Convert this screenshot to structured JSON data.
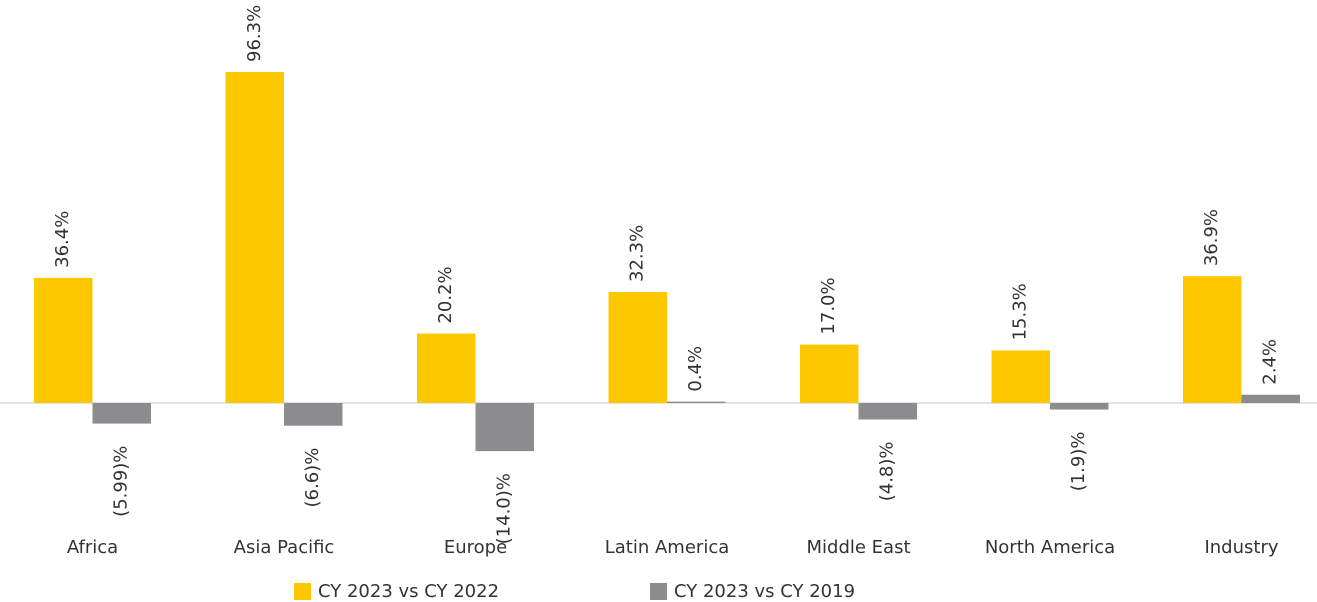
{
  "chart_data": {
    "type": "bar",
    "categories": [
      "Africa",
      "Asia Pacific",
      "Europe",
      "Latin America",
      "Middle East",
      "North America",
      "Industry"
    ],
    "series": [
      {
        "name": "CY 2023 vs CY 2022",
        "color": "#fdc800",
        "values": [
          36.4,
          96.3,
          20.2,
          32.3,
          17.0,
          15.3,
          36.9
        ],
        "value_labels": [
          "36.4%",
          "96.3%",
          "20.2%",
          "32.3%",
          "17.0%",
          "15.3%",
          "36.9%"
        ]
      },
      {
        "name": "CY 2023 vs CY 2019",
        "color": "#8c8c8e",
        "values": [
          -5.99,
          -6.6,
          -14.0,
          0.4,
          -4.8,
          -1.9,
          2.4
        ],
        "value_labels": [
          "(5.99)%",
          "(6.6)%",
          "(14.0)%",
          "0.4%",
          "(4.8)%",
          "(1.9)%",
          "2.4%"
        ]
      }
    ],
    "legend": "bottom"
  }
}
